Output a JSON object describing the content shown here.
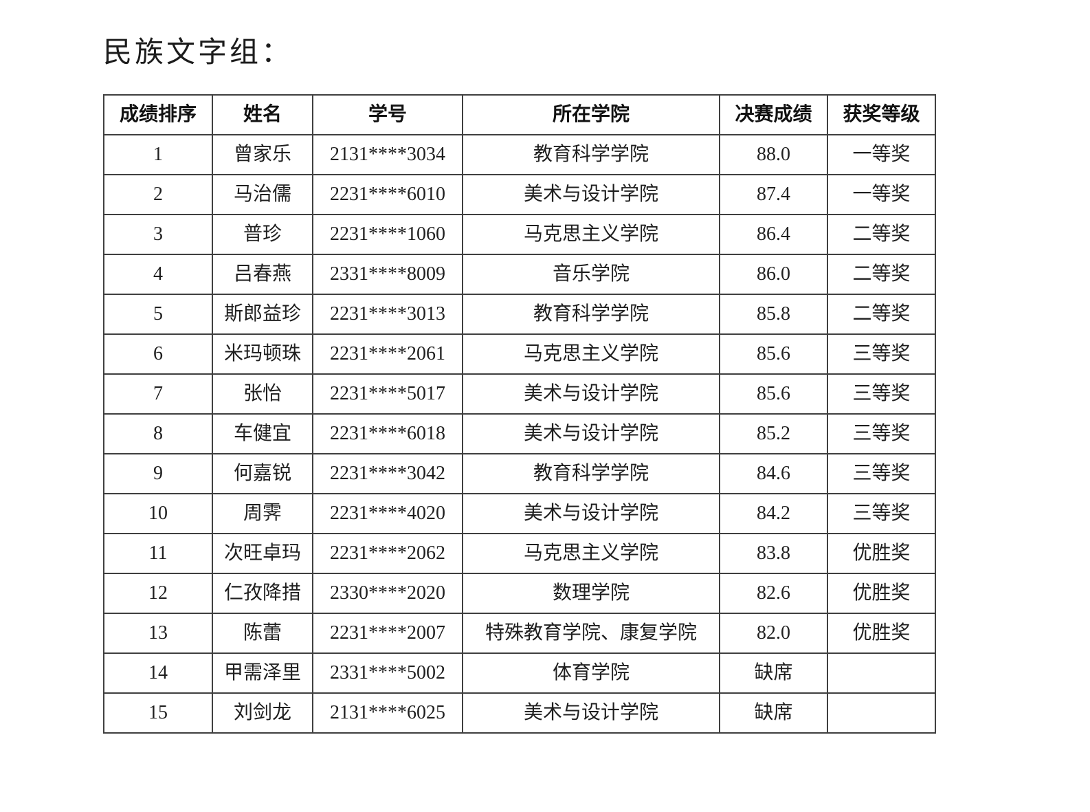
{
  "page": {
    "title": "民族文字组："
  },
  "colors": {
    "background": "#ffffff",
    "text": "#1f1f1f",
    "border": "#3f3f3f"
  },
  "table": {
    "headers": [
      "成绩排序",
      "姓名",
      "学号",
      "所在学院",
      "决赛成绩",
      "获奖等级"
    ],
    "rows": [
      [
        "1",
        "曾家乐",
        "2131****3034",
        "教育科学学院",
        "88.0",
        "一等奖"
      ],
      [
        "2",
        "马治儒",
        "2231****6010",
        "美术与设计学院",
        "87.4",
        "一等奖"
      ],
      [
        "3",
        "普珍",
        "2231****1060",
        "马克思主义学院",
        "86.4",
        "二等奖"
      ],
      [
        "4",
        "吕春燕",
        "2331****8009",
        "音乐学院",
        "86.0",
        "二等奖"
      ],
      [
        "5",
        "斯郎益珍",
        "2231****3013",
        "教育科学学院",
        "85.8",
        "二等奖"
      ],
      [
        "6",
        "米玛顿珠",
        "2231****2061",
        "马克思主义学院",
        "85.6",
        "三等奖"
      ],
      [
        "7",
        "张怡",
        "2231****5017",
        "美术与设计学院",
        "85.6",
        "三等奖"
      ],
      [
        "8",
        "车健宜",
        "2231****6018",
        "美术与设计学院",
        "85.2",
        "三等奖"
      ],
      [
        "9",
        "何嘉锐",
        "2231****3042",
        "教育科学学院",
        "84.6",
        "三等奖"
      ],
      [
        "10",
        "周霁",
        "2231****4020",
        "美术与设计学院",
        "84.2",
        "三等奖"
      ],
      [
        "11",
        "次旺卓玛",
        "2231****2062",
        "马克思主义学院",
        "83.8",
        "优胜奖"
      ],
      [
        "12",
        "仁孜降措",
        "2330****2020",
        "数理学院",
        "82.6",
        "优胜奖"
      ],
      [
        "13",
        "陈蕾",
        "2231****2007",
        "特殊教育学院、康复学院",
        "82.0",
        "优胜奖"
      ],
      [
        "14",
        "甲需泽里",
        "2331****5002",
        "体育学院",
        "缺席",
        ""
      ],
      [
        "15",
        "刘剑龙",
        "2131****6025",
        "美术与设计学院",
        "缺席",
        ""
      ]
    ]
  }
}
